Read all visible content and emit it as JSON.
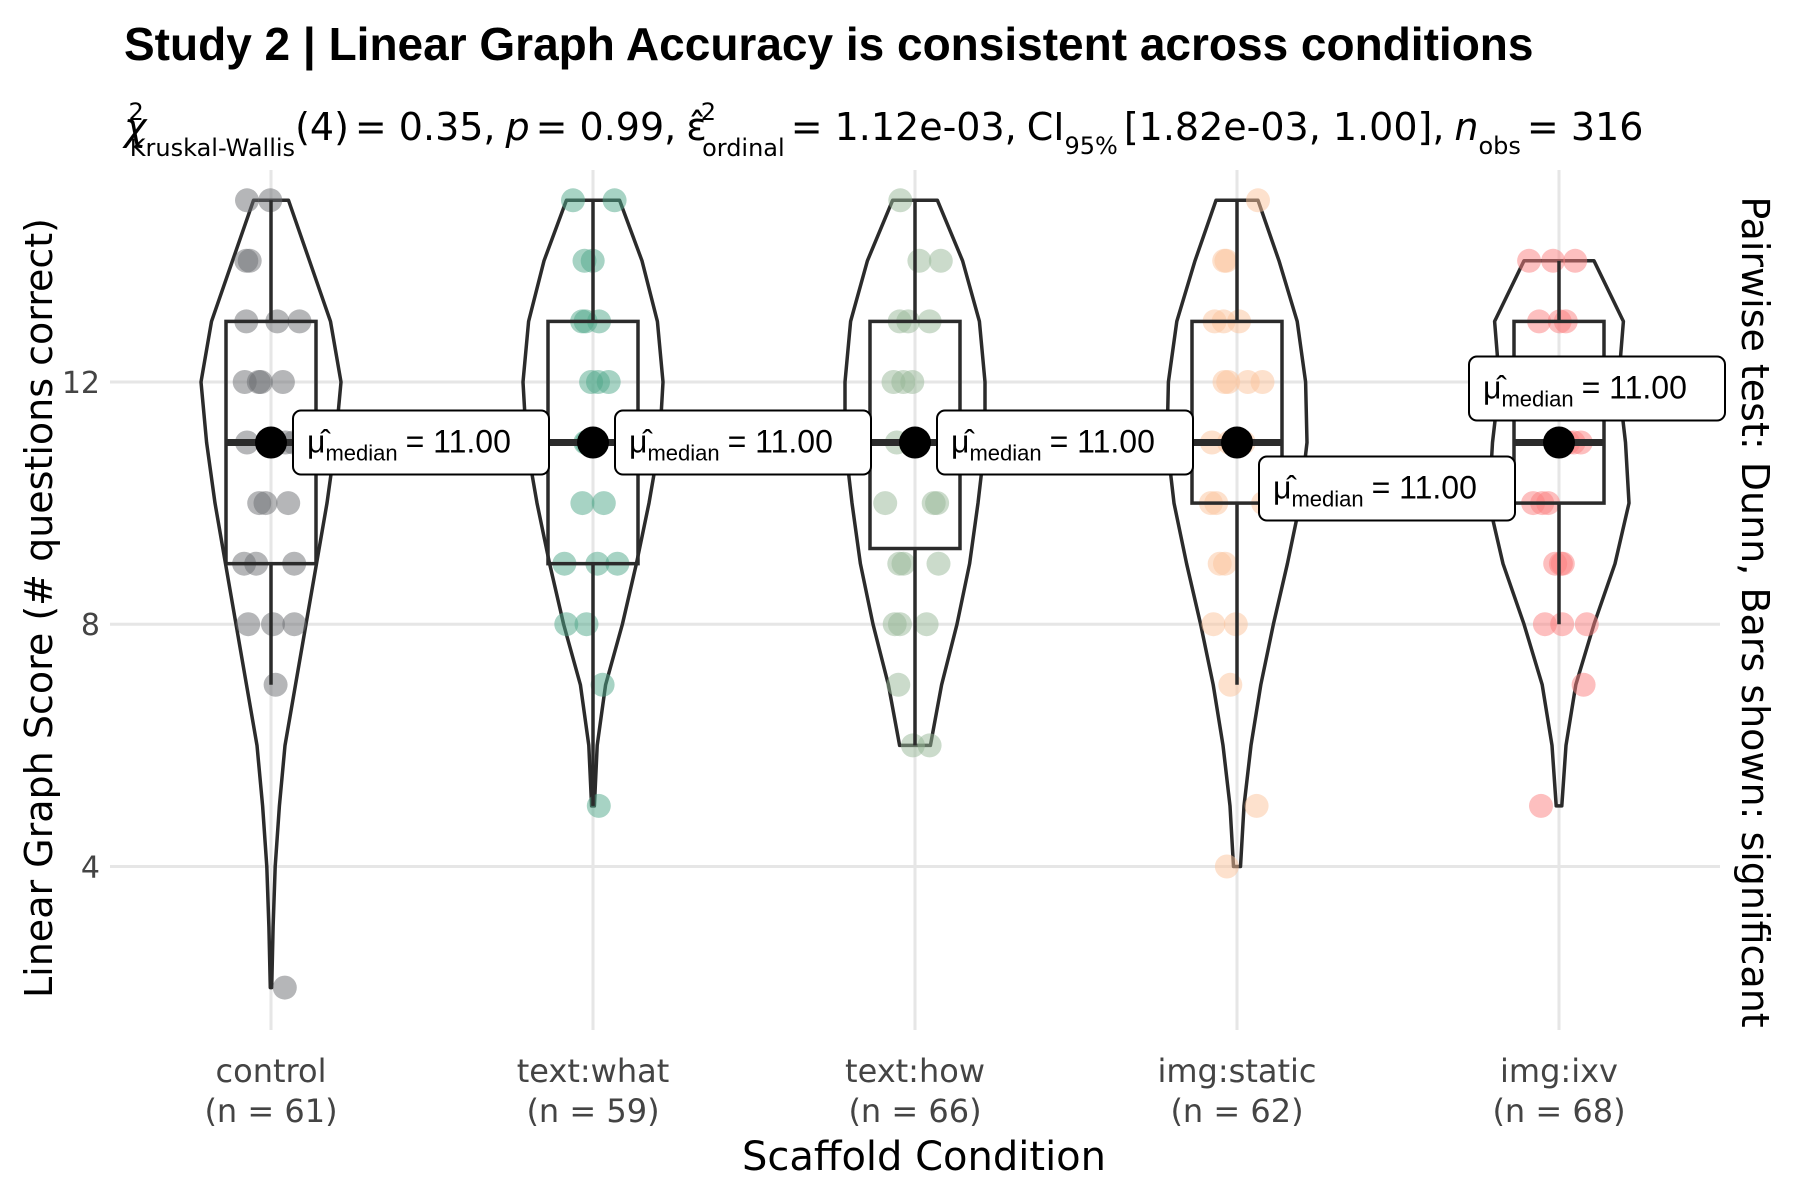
{
  "chart_data": {
    "type": "violin",
    "title": "Study 2 | Linear Graph Accuracy is consistent across conditions",
    "subtitle": {
      "chi_symbol": "χ",
      "chi_sup": "2",
      "chi_sub": "Kruskal-Wallis",
      "df": "(4)",
      "stat": "= 0.35,",
      "p_symbol": "p",
      "p_value": "= 0.99,",
      "eps_symbol": "ε̂",
      "eps_sup": "2",
      "eps_sub": "ordinal",
      "eps_value": "= 1.12e-03,",
      "ci_symbol": "CI",
      "ci_sub": "95%",
      "ci_value": "[1.82e-03, 1.00],",
      "n_symbol": "n",
      "n_sub": "obs",
      "n_value": "= 316"
    },
    "xlabel": "Scaffold Condition",
    "ylabel": "Linear Graph Score (# questions correct)",
    "right_label": "Pairwise test: Dunn, Bars shown: significant",
    "y_ticks": [
      "4",
      "8",
      "12"
    ],
    "ylim": [
      1.3,
      15.5
    ],
    "grid": true,
    "median_label_prefix": "μ̂",
    "median_label_sub": "median",
    "groups": [
      {
        "name": "control",
        "n_label": "(n = 61)",
        "color": "#6b6e72",
        "median": 11,
        "q1": 9,
        "q3": 13,
        "whisker_low": 7,
        "whisker_high": 15,
        "min": 2,
        "max": 15,
        "median_label": "= 11.00",
        "violin": [
          [
            2,
            0.01
          ],
          [
            3,
            0.03
          ],
          [
            4,
            0.06
          ],
          [
            5,
            0.12
          ],
          [
            6,
            0.2
          ],
          [
            7,
            0.35
          ],
          [
            8,
            0.5
          ],
          [
            9,
            0.65
          ],
          [
            10,
            0.8
          ],
          [
            11,
            0.92
          ],
          [
            12,
            1.0
          ],
          [
            13,
            0.85
          ],
          [
            14,
            0.55
          ],
          [
            15,
            0.25
          ]
        ],
        "points": [
          2,
          7,
          8,
          8,
          8,
          9,
          9,
          9,
          10,
          10,
          10,
          11,
          11,
          11,
          12,
          12,
          12,
          12,
          13,
          13,
          13,
          14,
          14,
          15,
          15
        ]
      },
      {
        "name": "text:what",
        "n_label": "(n = 59)",
        "color": "#4fa88a",
        "median": 11,
        "q1": 9,
        "q3": 13,
        "whisker_low": 5,
        "whisker_high": 15,
        "min": 5,
        "max": 15,
        "median_label": "= 11.00",
        "violin": [
          [
            5,
            0.02
          ],
          [
            6,
            0.06
          ],
          [
            7,
            0.18
          ],
          [
            8,
            0.42
          ],
          [
            9,
            0.62
          ],
          [
            10,
            0.8
          ],
          [
            11,
            0.95
          ],
          [
            12,
            1.0
          ],
          [
            13,
            0.92
          ],
          [
            14,
            0.7
          ],
          [
            15,
            0.38
          ]
        ],
        "points": [
          5,
          7,
          8,
          8,
          9,
          9,
          9,
          10,
          10,
          11,
          11,
          11,
          12,
          12,
          12,
          13,
          13,
          13,
          14,
          14,
          15,
          15
        ]
      },
      {
        "name": "text:how",
        "n_label": "(n = 66)",
        "color": "#98b898",
        "median": 11,
        "q1": 9.25,
        "q3": 13,
        "whisker_low": 6,
        "whisker_high": 15,
        "min": 6,
        "max": 15,
        "median_label": "= 11.00",
        "violin": [
          [
            6,
            0.22
          ],
          [
            7,
            0.38
          ],
          [
            8,
            0.6
          ],
          [
            9,
            0.78
          ],
          [
            10,
            0.9
          ],
          [
            11,
            1.0
          ],
          [
            12,
            1.0
          ],
          [
            13,
            0.92
          ],
          [
            14,
            0.68
          ],
          [
            15,
            0.32
          ]
        ],
        "points": [
          6,
          6,
          7,
          8,
          8,
          8,
          9,
          9,
          9,
          10,
          10,
          10,
          11,
          11,
          11,
          12,
          12,
          12,
          13,
          13,
          13,
          14,
          14,
          15
        ]
      },
      {
        "name": "img:static",
        "n_label": "(n = 62)",
        "color": "#fcc49c",
        "median": 11,
        "q1": 10,
        "q3": 13,
        "whisker_low": 7,
        "whisker_high": 15,
        "min": 4,
        "max": 15,
        "median_label": "= 11.00",
        "violin": [
          [
            4,
            0.05
          ],
          [
            5,
            0.1
          ],
          [
            6,
            0.2
          ],
          [
            7,
            0.34
          ],
          [
            8,
            0.52
          ],
          [
            9,
            0.72
          ],
          [
            10,
            0.9
          ],
          [
            11,
            1.0
          ],
          [
            12,
            0.98
          ],
          [
            13,
            0.86
          ],
          [
            14,
            0.6
          ],
          [
            15,
            0.3
          ]
        ],
        "points": [
          4,
          5,
          7,
          8,
          8,
          9,
          9,
          10,
          10,
          10,
          11,
          11,
          11,
          12,
          12,
          12,
          12,
          13,
          13,
          13,
          14,
          14,
          15
        ]
      },
      {
        "name": "img:ixv",
        "n_label": "(n = 68)",
        "color": "#fb8080",
        "median": 11,
        "q1": 10,
        "q3": 13,
        "whisker_low": 8,
        "whisker_high": 14,
        "min": 5,
        "max": 14,
        "median_label": "= 11.00",
        "violin": [
          [
            5,
            0.04
          ],
          [
            6,
            0.1
          ],
          [
            7,
            0.24
          ],
          [
            8,
            0.5
          ],
          [
            9,
            0.8
          ],
          [
            10,
            1.0
          ],
          [
            11,
            0.95
          ],
          [
            12,
            0.85
          ],
          [
            13,
            0.92
          ],
          [
            14,
            0.5
          ]
        ],
        "points": [
          5,
          7,
          8,
          8,
          8,
          9,
          9,
          9,
          10,
          10,
          10,
          11,
          11,
          11,
          12,
          12,
          12,
          13,
          13,
          13,
          14,
          14,
          14
        ]
      }
    ]
  }
}
